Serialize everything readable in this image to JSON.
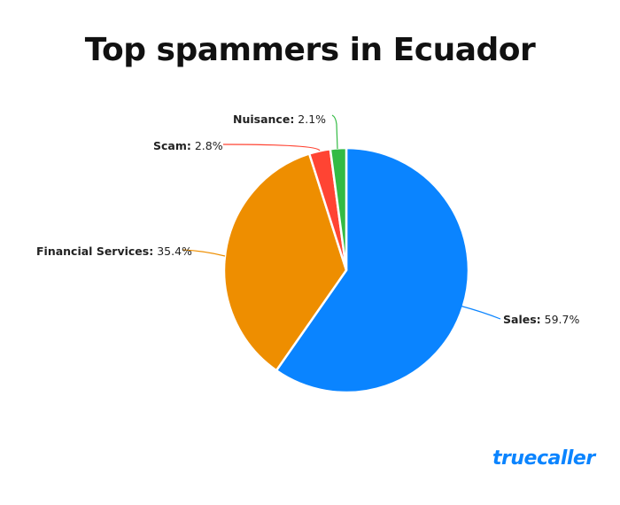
{
  "chart_data": {
    "type": "pie",
    "title": "Top spammers in Ecuador",
    "start_angle": "top",
    "direction": "clockwise",
    "slices": [
      {
        "name": "Sales",
        "value": 59.7,
        "label": "59.7%",
        "color": "#0A84FF"
      },
      {
        "name": "Financial Services",
        "value": 35.4,
        "label": "35.4%",
        "color": "#EE8E00"
      },
      {
        "name": "Scam",
        "value": 2.8,
        "label": "2.8%",
        "color": "#FF4433"
      },
      {
        "name": "Nuisance",
        "value": 2.1,
        "label": "2.1%",
        "color": "#33BB44"
      }
    ]
  },
  "brand": {
    "logo_text": "truecaller",
    "color": "#0A84FF"
  }
}
